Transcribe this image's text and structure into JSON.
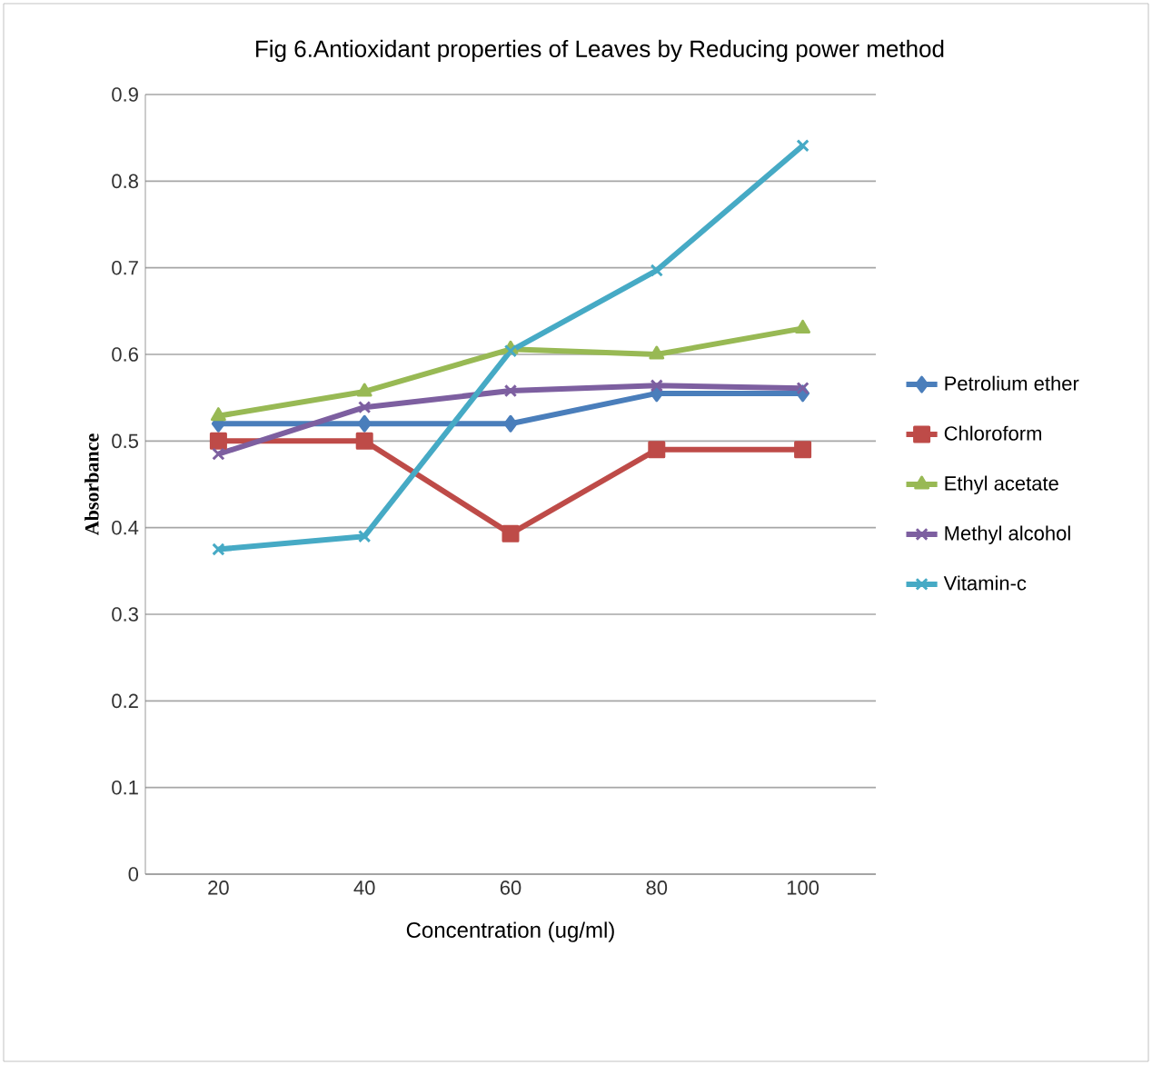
{
  "chart_data": {
    "type": "line",
    "title": "Fig 6.Antioxidant properties of Leaves by Reducing power method",
    "xlabel": "Concentration (ug/ml)",
    "ylabel": "Absorbance",
    "categories": [
      "20",
      "40",
      "60",
      "80",
      "100"
    ],
    "ylim": [
      0,
      0.9
    ],
    "yticks": [
      0,
      0.1,
      0.2,
      0.3,
      0.4,
      0.5,
      0.6,
      0.7,
      0.8,
      0.9
    ],
    "grid": "y",
    "legend": "right",
    "series": [
      {
        "name": "Petrolium ether",
        "color": "#4a7ebb",
        "marker": "diamond",
        "values": [
          0.52,
          0.52,
          0.52,
          0.555,
          0.555
        ]
      },
      {
        "name": "Chloroform",
        "color": "#be4b48",
        "marker": "square",
        "values": [
          0.5,
          0.5,
          0.393,
          0.49,
          0.49
        ]
      },
      {
        "name": "Ethyl acetate",
        "color": "#98b954",
        "marker": "triangle",
        "values": [
          0.529,
          0.557,
          0.606,
          0.6,
          0.63
        ]
      },
      {
        "name": "Methyl alcohol",
        "color": "#7d5fa0",
        "marker": "cross",
        "values": [
          0.485,
          0.539,
          0.558,
          0.564,
          0.561
        ]
      },
      {
        "name": "Vitamin-c",
        "color": "#46aac5",
        "marker": "cross",
        "values": [
          0.375,
          0.39,
          0.604,
          0.697,
          0.841
        ]
      }
    ]
  }
}
